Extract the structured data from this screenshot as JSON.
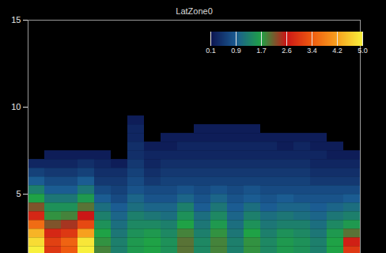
{
  "chart_data": {
    "type": "heatmap",
    "title": "LatZone0",
    "xlim": [
      0,
      20
    ],
    "ylim": [
      1.6,
      15
    ],
    "yticks": [
      5,
      10,
      15
    ],
    "tick_labels": "y",
    "xbins": [
      0,
      1,
      2,
      3,
      4,
      5,
      6,
      7,
      8,
      9,
      10,
      11,
      12,
      13,
      14,
      15,
      16,
      17,
      18,
      19,
      20
    ],
    "ybins": [
      1.6,
      2,
      2.5,
      3,
      3.5,
      4,
      4.5,
      5,
      5.5,
      6,
      6.5,
      7,
      7.5,
      8,
      8.5,
      9,
      9.5
    ],
    "cells": [
      [
        5.0,
        4.8,
        4.4,
        3.6,
        2.8,
        2.2,
        1.7,
        1.3,
        0.9,
        0.6,
        0.3,
        null,
        null,
        null,
        null,
        null
      ],
      [
        3.0,
        3.1,
        2.8,
        2.2,
        1.8,
        1.5,
        1.2,
        0.9,
        0.7,
        0.5,
        0.3,
        0.2,
        null,
        null,
        null,
        null
      ],
      [
        3.4,
        3.5,
        3.0,
        2.4,
        1.9,
        1.5,
        1.2,
        0.9,
        0.7,
        0.5,
        0.3,
        0.2,
        null,
        null,
        null,
        null
      ],
      [
        5.0,
        4.9,
        4.2,
        3.2,
        2.6,
        2.0,
        1.6,
        1.2,
        0.9,
        0.6,
        0.4,
        0.2,
        null,
        null,
        null,
        null
      ],
      [
        1.9,
        1.8,
        1.7,
        1.5,
        1.3,
        1.1,
        0.9,
        0.7,
        0.5,
        0.4,
        0.3,
        0.2,
        null,
        null,
        null,
        null
      ],
      [
        1.3,
        1.3,
        1.2,
        1.1,
        1.0,
        0.9,
        0.7,
        0.6,
        0.5,
        0.4,
        0.2,
        null,
        null,
        null,
        null,
        null
      ],
      [
        1.6,
        1.6,
        1.5,
        1.4,
        1.3,
        1.1,
        1.0,
        0.8,
        0.7,
        0.6,
        0.5,
        0.4,
        0.4,
        0.3,
        0.3,
        0.2
      ],
      [
        1.7,
        1.7,
        1.6,
        1.4,
        1.2,
        1.0,
        0.8,
        0.7,
        0.5,
        0.4,
        0.3,
        0.3,
        0.2,
        null,
        null,
        null
      ],
      [
        1.5,
        1.5,
        1.4,
        1.3,
        1.1,
        1.0,
        0.8,
        0.7,
        0.6,
        0.5,
        0.4,
        0.3,
        0.2,
        0.2,
        null,
        null
      ],
      [
        2.0,
        2.0,
        1.9,
        1.7,
        1.5,
        1.3,
        1.0,
        0.8,
        0.6,
        0.5,
        0.4,
        0.3,
        0.3,
        0.2,
        null,
        null
      ],
      [
        1.4,
        1.4,
        1.3,
        1.2,
        1.1,
        0.9,
        0.8,
        0.7,
        0.6,
        0.5,
        0.4,
        0.3,
        0.3,
        0.2,
        0.2,
        null
      ],
      [
        1.9,
        1.9,
        1.8,
        1.6,
        1.4,
        1.2,
        1.0,
        0.8,
        0.6,
        0.5,
        0.4,
        0.3,
        0.3,
        0.2,
        0.2,
        null
      ],
      [
        1.3,
        1.3,
        1.2,
        1.1,
        1.0,
        0.9,
        0.8,
        0.7,
        0.6,
        0.5,
        0.4,
        0.3,
        0.3,
        0.2,
        0.2,
        null
      ],
      [
        1.8,
        1.8,
        1.7,
        1.5,
        1.3,
        1.1,
        0.9,
        0.8,
        0.6,
        0.5,
        0.4,
        0.3,
        0.3,
        0.2,
        0.2,
        null
      ],
      [
        1.4,
        1.4,
        1.3,
        1.2,
        1.1,
        0.9,
        0.8,
        0.7,
        0.6,
        0.5,
        0.4,
        0.3,
        0.3,
        0.2,
        null,
        null
      ],
      [
        1.6,
        1.6,
        1.5,
        1.3,
        1.2,
        1.0,
        0.9,
        0.7,
        0.6,
        0.5,
        0.4,
        0.3,
        0.2,
        0.2,
        null,
        null
      ],
      [
        1.5,
        1.5,
        1.4,
        1.3,
        1.1,
        1.0,
        0.8,
        0.7,
        0.6,
        0.5,
        0.4,
        0.3,
        0.3,
        0.2,
        null,
        null
      ],
      [
        1.3,
        1.3,
        1.2,
        1.1,
        1.0,
        0.9,
        0.8,
        0.7,
        0.5,
        0.4,
        0.3,
        0.3,
        0.2,
        0.2,
        null,
        null
      ],
      [
        1.7,
        1.7,
        1.6,
        1.4,
        1.2,
        1.0,
        0.8,
        0.7,
        0.5,
        0.4,
        0.3,
        0.2,
        0.2,
        null,
        null,
        null
      ],
      [
        3.0,
        2.7,
        2.0,
        1.6,
        1.3,
        1.1,
        0.9,
        0.7,
        0.5,
        0.4,
        0.3,
        0.2,
        null,
        null,
        null,
        null
      ]
    ],
    "colorbar": {
      "range": [
        0.1,
        5
      ],
      "ticks": [
        0.1,
        0.9,
        1.7,
        2.6,
        3.4,
        4.2,
        {
          "value": 5,
          "label": "5.0"
        }
      ]
    }
  }
}
